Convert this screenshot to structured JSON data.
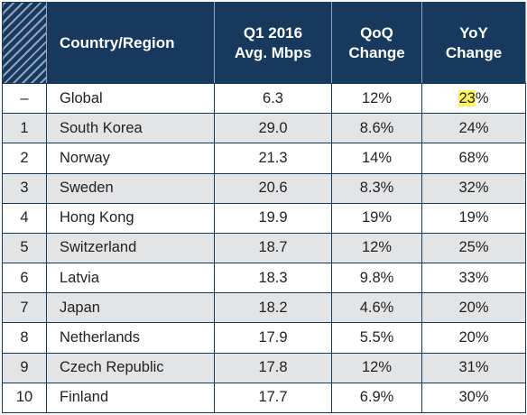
{
  "chart_data": {
    "type": "table",
    "columns": [
      "",
      "Country/Region",
      "Q1 2016\nAvg. Mbps",
      "QoQ\nChange",
      "YoY\nChange"
    ],
    "header": {
      "country": "Country/Region",
      "speed_line1": "Q1 2016",
      "speed_line2": "Avg. Mbps",
      "qoq_line1": "QoQ",
      "qoq_line2": "Change",
      "yoy_line1": "YoY",
      "yoy_line2": "Change"
    },
    "rows": [
      {
        "rank": "–",
        "country": "Global",
        "speed": "6.3",
        "qoq": "12%",
        "yoy_a": "23",
        "yoy_b": "%"
      },
      {
        "rank": "1",
        "country": "South Korea",
        "speed": "29.0",
        "qoq": "8.6%",
        "yoy": "24%"
      },
      {
        "rank": "2",
        "country": "Norway",
        "speed": "21.3",
        "qoq": "14%",
        "yoy": "68%"
      },
      {
        "rank": "3",
        "country": "Sweden",
        "speed": "20.6",
        "qoq": "8.3%",
        "yoy": "32%"
      },
      {
        "rank": "4",
        "country": "Hong Kong",
        "speed": "19.9",
        "qoq": "19%",
        "yoy": "19%"
      },
      {
        "rank": "5",
        "country": "Switzerland",
        "speed": "18.7",
        "qoq": "12%",
        "yoy": "25%"
      },
      {
        "rank": "6",
        "country": "Latvia",
        "speed": "18.3",
        "qoq": "9.8%",
        "yoy": "33%"
      },
      {
        "rank": "7",
        "country": "Japan",
        "speed": "18.2",
        "qoq": "4.6%",
        "yoy": "20%"
      },
      {
        "rank": "8",
        "country": "Netherlands",
        "speed": "17.9",
        "qoq": "5.5%",
        "yoy": "20%"
      },
      {
        "rank": "9",
        "country": "Czech Republic",
        "speed": "17.8",
        "qoq": "12%",
        "yoy": "31%"
      },
      {
        "rank": "10",
        "country": "Finland",
        "speed": "17.7",
        "qoq": "6.9%",
        "yoy": "30%"
      }
    ]
  },
  "colors": {
    "header_bg": "#17395e",
    "header_text": "#ffffff",
    "row_alt_bg": "#e3e4e6",
    "highlight": "#fff55a"
  }
}
